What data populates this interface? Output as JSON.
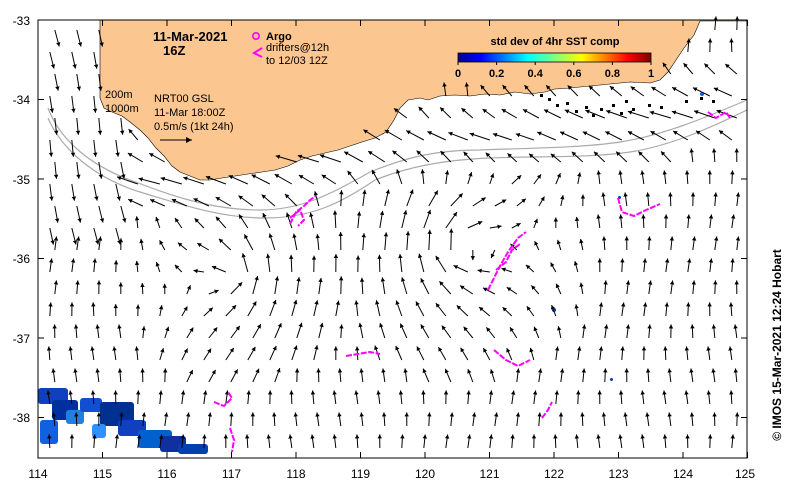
{
  "map": {
    "date": "11-Mar-2021",
    "hour": "16Z",
    "legend_argo": "Argo",
    "legend_drifters": "drifters@12h",
    "legend_drifters_to": "to 12/03 12Z",
    "depth_200": "200m",
    "depth_1000": "1000m",
    "model": "NRT00 GSL",
    "model_time": "11-Mar 18:00Z",
    "scale_label": "0.5m/s (1kt 24h)",
    "colorbar_title": "std dev of 4hr SST comp",
    "colorbar_ticks": [
      "0",
      "0.2",
      "0.4",
      "0.6",
      "0.8",
      "1"
    ],
    "credit": "© IMOS 15-Mar-2021 12:24 Hobart",
    "lon_ticks": [
      "114",
      "115",
      "116",
      "117",
      "118",
      "119",
      "120",
      "121",
      "122",
      "123",
      "124",
      "125"
    ],
    "lat_ticks": [
      "-33",
      "-34",
      "-35",
      "-36",
      "-37",
      "-38"
    ],
    "colors": {
      "land": "#fcc690",
      "drifters": "#ff00ff",
      "isobath": "#aaaaaa",
      "arrows": "#000000"
    },
    "colorbar_colors": [
      "#00008f",
      "#0000ff",
      "#0070ff",
      "#00dfff",
      "#50ff af",
      "#c0ff40",
      "#ffd000",
      "#ff6000",
      "#e00000",
      "#800000"
    ]
  }
}
